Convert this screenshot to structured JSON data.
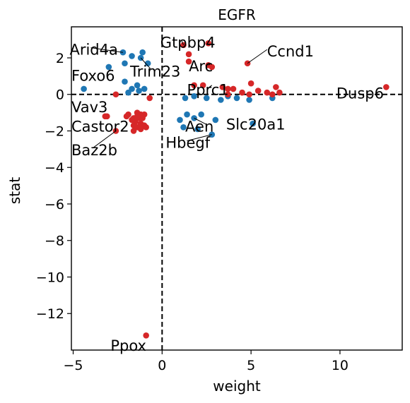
{
  "chart_data": {
    "type": "scatter",
    "title": "EGFR",
    "xlabel": "weight",
    "ylabel": "stat",
    "xlim": [
      -5.1,
      13.5
    ],
    "ylim": [
      -14.0,
      3.7
    ],
    "xticks": [
      -5,
      0,
      5,
      10
    ],
    "yticks": [
      2,
      0,
      -2,
      -4,
      -6,
      -8,
      -10,
      -12
    ],
    "reference_lines": {
      "x": 0,
      "y": 0,
      "style": "dashed"
    },
    "colors": {
      "positive": "#d62728",
      "negative": "#1f77b4"
    },
    "points_red": [
      [
        1.2,
        2.7
      ],
      [
        1.5,
        2.2
      ],
      [
        1.5,
        1.8
      ],
      [
        2.6,
        2.8
      ],
      [
        2.6,
        1.6
      ],
      [
        2.8,
        1.5
      ],
      [
        4.8,
        1.7
      ],
      [
        12.6,
        0.4
      ],
      [
        1.8,
        0.5
      ],
      [
        2.3,
        0.5
      ],
      [
        3.4,
        0.4
      ],
      [
        3.7,
        0.3
      ],
      [
        4.0,
        0.3
      ],
      [
        3.7,
        0.0
      ],
      [
        4.5,
        0.1
      ],
      [
        4.9,
        0.0
      ],
      [
        5.0,
        0.6
      ],
      [
        5.4,
        0.2
      ],
      [
        5.9,
        0.1
      ],
      [
        6.2,
        0.0
      ],
      [
        6.4,
        0.4
      ],
      [
        6.6,
        0.1
      ],
      [
        -0.7,
        -0.2
      ],
      [
        -2.6,
        0.0
      ],
      [
        -3.1,
        -1.2
      ],
      [
        -3.2,
        -1.2
      ],
      [
        -2.6,
        -2.0
      ],
      [
        -1.4,
        -1.0
      ],
      [
        -1.2,
        -1.1
      ],
      [
        -1.0,
        -1.1
      ],
      [
        -1.6,
        -1.3
      ],
      [
        -1.3,
        -1.3
      ],
      [
        -1.1,
        -1.3
      ],
      [
        -1.5,
        -1.5
      ],
      [
        -1.2,
        -1.6
      ],
      [
        -1.0,
        -1.7
      ],
      [
        -1.6,
        -1.7
      ],
      [
        -1.4,
        -1.8
      ],
      [
        -1.2,
        -1.9
      ],
      [
        -1.6,
        -2.0
      ],
      [
        -1.9,
        -1.1
      ],
      [
        -2.0,
        -1.2
      ],
      [
        -1.7,
        -1.4
      ],
      [
        -1.4,
        -1.2
      ],
      [
        -0.9,
        -1.8
      ],
      [
        -0.9,
        -13.2
      ]
    ],
    "points_blue": [
      [
        -2.2,
        2.3
      ],
      [
        -1.7,
        2.1
      ],
      [
        -1.2,
        2.0
      ],
      [
        -1.1,
        2.3
      ],
      [
        -0.8,
        1.7
      ],
      [
        -2.1,
        1.7
      ],
      [
        -3.0,
        1.5
      ],
      [
        -2.1,
        0.7
      ],
      [
        -1.4,
        0.5
      ],
      [
        -1.0,
        0.3
      ],
      [
        -1.9,
        0.1
      ],
      [
        -1.7,
        0.3
      ],
      [
        -1.3,
        0.2
      ],
      [
        -4.4,
        0.3
      ],
      [
        1.3,
        -0.2
      ],
      [
        1.8,
        -0.1
      ],
      [
        2.5,
        -0.2
      ],
      [
        3.3,
        -0.3
      ],
      [
        3.7,
        -0.1
      ],
      [
        4.2,
        -0.2
      ],
      [
        4.9,
        -0.3
      ],
      [
        6.2,
        -0.2
      ],
      [
        1.0,
        -1.4
      ],
      [
        1.4,
        -1.1
      ],
      [
        1.8,
        -1.3
      ],
      [
        2.2,
        -1.1
      ],
      [
        1.2,
        -1.8
      ],
      [
        2.0,
        -1.9
      ],
      [
        3.0,
        -1.4
      ],
      [
        5.1,
        -1.6
      ],
      [
        2.8,
        -2.2
      ]
    ],
    "labels": [
      {
        "text": "Arid4a",
        "x": -5.2,
        "y": 2.4,
        "px": -2.2,
        "py": 2.3
      },
      {
        "text": "Gtpbp4",
        "x": -0.1,
        "y": 2.8,
        "px": 1.2,
        "py": 2.7
      },
      {
        "text": "Ccnd1",
        "x": 5.9,
        "y": 2.3,
        "px": 4.8,
        "py": 1.7
      },
      {
        "text": "Trim23",
        "x": -1.8,
        "y": 1.2,
        "px": -1.2,
        "py": 2.0
      },
      {
        "text": "Arc",
        "x": 1.5,
        "y": 1.5,
        "px": 2.6,
        "py": 1.6
      },
      {
        "text": "Foxo6",
        "x": -5.1,
        "y": 0.97,
        "px": null,
        "py": null
      },
      {
        "text": "Pprc1",
        "x": 1.4,
        "y": 0.2,
        "px": 2.8,
        "py": 0.5
      },
      {
        "text": "Dusp6",
        "x": 9.8,
        "y": 0.0,
        "px": null,
        "py": null
      },
      {
        "text": "Vav3",
        "x": -5.1,
        "y": -0.75,
        "px": null,
        "py": null
      },
      {
        "text": "Castor2",
        "x": -5.1,
        "y": -1.8,
        "px": null,
        "py": null
      },
      {
        "text": "Aen",
        "x": 1.3,
        "y": -1.8,
        "px": 1.8,
        "py": -1.3
      },
      {
        "text": "Slc20a1",
        "x": 3.6,
        "y": -1.7,
        "px": null,
        "py": null
      },
      {
        "text": "Baz2b",
        "x": -5.1,
        "y": -3.1,
        "px": -2.6,
        "py": -2.0
      },
      {
        "text": "Hbegf",
        "x": 0.2,
        "y": -2.7,
        "px": 2.8,
        "py": -2.2
      },
      {
        "text": "Ppox",
        "x": -2.9,
        "y": -13.8,
        "px": null,
        "py": null
      }
    ]
  }
}
